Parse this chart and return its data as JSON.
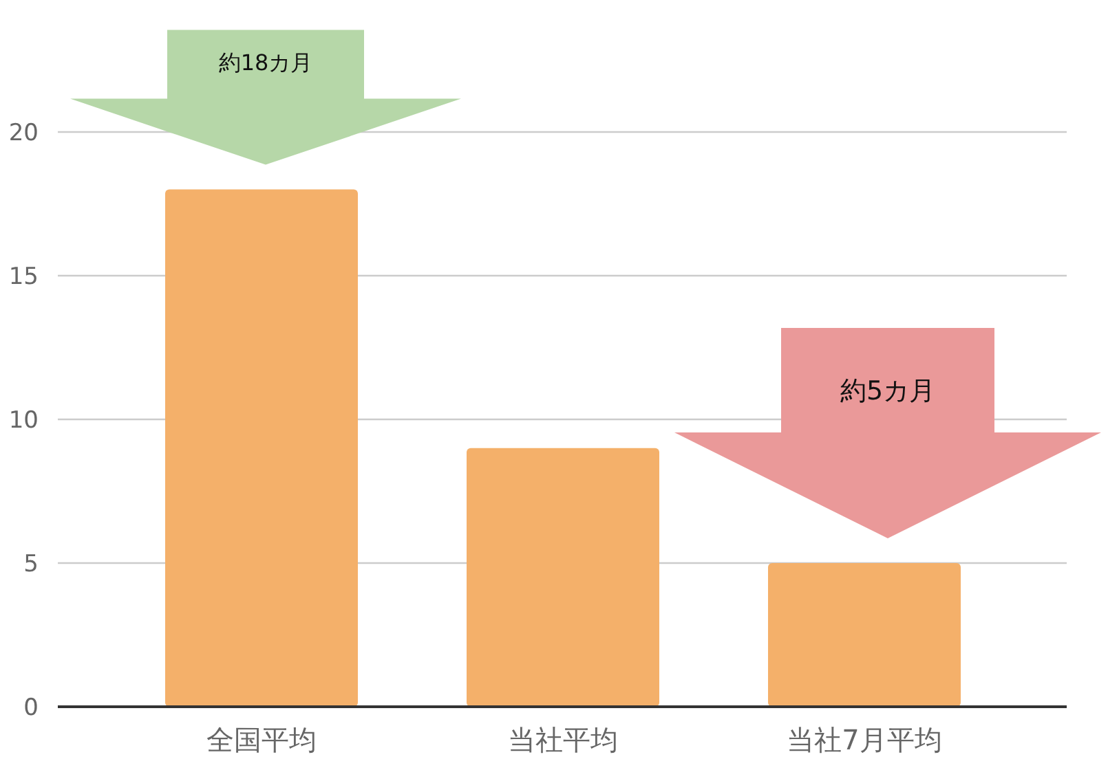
{
  "chart_data": {
    "type": "bar",
    "categories": [
      "全国平均",
      "当社平均",
      "当社7月平均"
    ],
    "values": [
      18,
      9,
      5
    ],
    "color": "#f4b06a",
    "ylim": [
      0,
      20
    ],
    "yticks": [
      0,
      5,
      10,
      15,
      20
    ],
    "grid": "y",
    "annotations": [
      "約18カ月",
      "約5カ月"
    ]
  }
}
